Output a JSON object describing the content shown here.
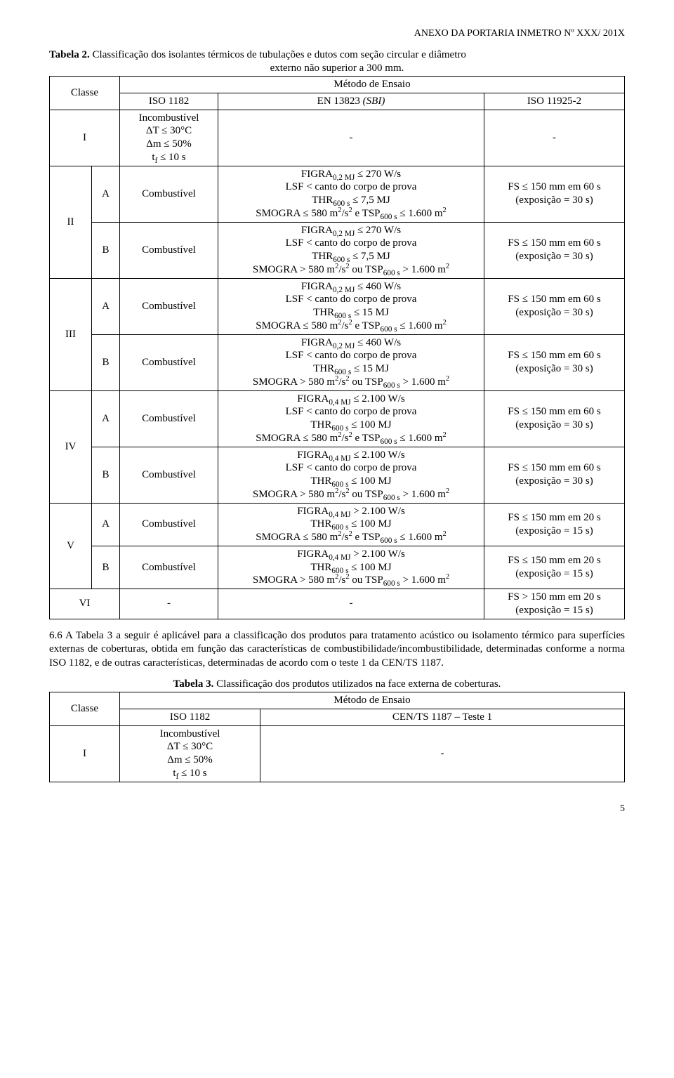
{
  "header_right": "ANEXO DA PORTARIA INMETRO Nº XXX/ 201X",
  "t2": {
    "caption_bold": "Tabela 2.",
    "caption_rest": " Classificação dos isolantes térmicos de tubulações e dutos com seção circular e diâmetro",
    "caption_line2": "externo não superior a 300 mm.",
    "head_classe": "Classe",
    "head_metodo": "Método de Ensaio",
    "head_iso1182": "ISO 1182",
    "head_en_pre": "EN 13823 ",
    "head_en_it": "(SBI)",
    "head_iso11925": "ISO 11925-2",
    "rows": {
      "I_label": "I",
      "I_iso1182": "Incombustível\nΔT ≤ 30°C\nΔm ≤ 50%\ntf ≤ 10 s",
      "I_en": "-",
      "I_iso11925": "-",
      "II_label": "II",
      "II_A": "A",
      "II_A_iso1182": "Combustível",
      "II_A_en": "FIGRA0,2 MJ ≤ 270 W/s\nLSF < canto do corpo de prova\nTHR600 s ≤ 7,5 MJ\nSMOGRA ≤ 580 m²/s² e TSP600 s ≤ 1.600 m²",
      "II_A_iso11925": "FS ≤ 150 mm em 60 s\n(exposição = 30 s)",
      "II_B": "B",
      "II_B_iso1182": "Combustível",
      "II_B_en": "FIGRA0,2 MJ ≤ 270 W/s\nLSF < canto do corpo de prova\nTHR600 s ≤ 7,5 MJ\nSMOGRA > 580 m²/s² ou TSP600 s > 1.600 m²",
      "II_B_iso11925": "FS ≤ 150 mm em 60 s\n(exposição = 30 s)",
      "III_label": "III",
      "III_A": "A",
      "III_A_iso1182": "Combustível",
      "III_A_en": "FIGRA0,2 MJ ≤ 460 W/s\nLSF < canto do corpo de prova\nTHR600 s ≤ 15 MJ\nSMOGRA ≤ 580 m²/s² e TSP600 s ≤ 1.600 m²",
      "III_A_iso11925": "FS ≤ 150 mm em 60 s\n(exposição = 30 s)",
      "III_B": "B",
      "III_B_iso1182": "Combustível",
      "III_B_en": "FIGRA0,2 MJ ≤ 460 W/s\nLSF < canto do corpo de prova\nTHR600 s ≤ 15 MJ\nSMOGRA > 580 m²/s² ou TSP600 s > 1.600 m²",
      "III_B_iso11925": "FS ≤ 150 mm em 60 s\n(exposição = 30 s)",
      "IV_label": "IV",
      "IV_A": "A",
      "IV_A_iso1182": "Combustível",
      "IV_A_en": "FIGRA0,4 MJ ≤ 2.100 W/s\nLSF < canto do corpo de prova\nTHR600 s ≤ 100 MJ\nSMOGRA ≤ 580 m²/s² e TSP600 s ≤ 1.600 m²",
      "IV_A_iso11925": "FS ≤ 150 mm em 60 s\n(exposição = 30 s)",
      "IV_B": "B",
      "IV_B_iso1182": "Combustível",
      "IV_B_en": "FIGRA0,4 MJ ≤ 2.100 W/s\nLSF < canto do corpo de prova\nTHR600 s ≤ 100 MJ\nSMOGRA > 580 m²/s² ou TSP600 s > 1.600 m²",
      "IV_B_iso11925": "FS ≤ 150 mm em 60 s\n(exposição = 30 s)",
      "V_label": "V",
      "V_A": "A",
      "V_A_iso1182": "Combustível",
      "V_A_en": "FIGRA0,4 MJ > 2.100 W/s\nTHR600 s ≤ 100 MJ\nSMOGRA ≤ 580 m²/s² e TSP600 s ≤ 1.600 m²",
      "V_A_iso11925": "FS ≤ 150 mm em 20 s\n(exposição = 15 s)",
      "V_B": "B",
      "V_B_iso1182": "Combustível",
      "V_B_en": "FIGRA0,4 MJ > 2.100 W/s\nTHR600 s ≤ 100 MJ\nSMOGRA > 580 m²/s² ou TSP600 s > 1.600 m²",
      "V_B_iso11925": "FS ≤ 150 mm em 20 s\n(exposição = 15 s)",
      "VI_label": "VI",
      "VI_iso1182": "-",
      "VI_en": "-",
      "VI_iso11925": "FS > 150 mm em 20 s\n(exposição = 15 s)"
    }
  },
  "para_6_6": "6.6  A Tabela 3 a seguir é aplicável para a classificação dos produtos para tratamento acústico ou isolamento térmico para superfícies externas de coberturas, obtida em função das características de combustibilidade/incombustibilidade, determinadas conforme a norma ISO 1182, e de outras características, determinadas de acordo com o teste 1 da CEN/TS 1187.",
  "t3": {
    "caption_bold": "Tabela 3.",
    "caption_rest": " Classificação dos produtos utilizados na face externa de coberturas.",
    "head_classe": "Classe",
    "head_metodo": "Método de Ensaio",
    "head_iso1182": "ISO 1182",
    "head_cen": "CEN/TS 1187 – Teste 1",
    "I_label": "I",
    "I_iso1182": "Incombustível\nΔT ≤ 30°C\nΔm ≤ 50%\ntf ≤ 10 s",
    "I_cen": "-"
  },
  "page_number": "5"
}
